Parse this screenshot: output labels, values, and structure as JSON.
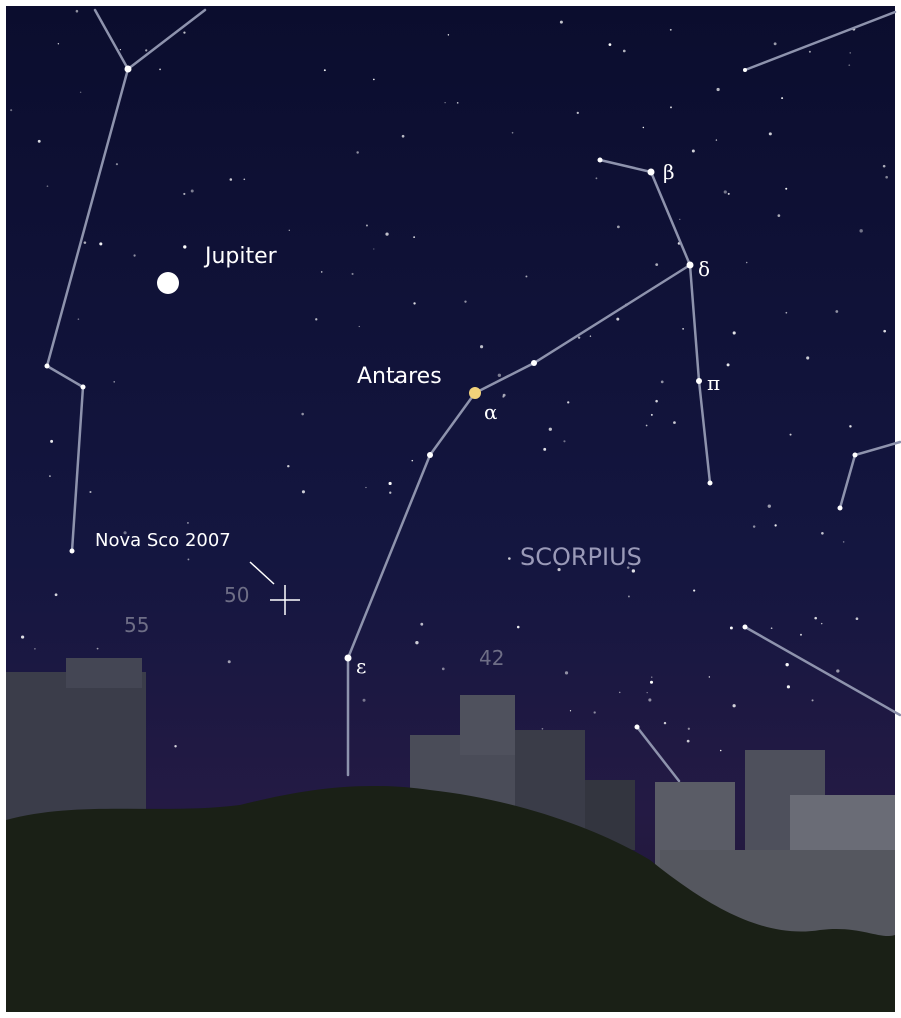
{
  "labels": {
    "planet": "Jupiter",
    "star": "Antares",
    "constellation": "SCORPIUS",
    "nova": "Nova Sco 2007"
  },
  "greek": {
    "alpha": "α",
    "beta": "β",
    "delta": "δ",
    "pi": "π",
    "epsilon": "ε"
  },
  "magnitudes": [
    50,
    55,
    42
  ]
}
